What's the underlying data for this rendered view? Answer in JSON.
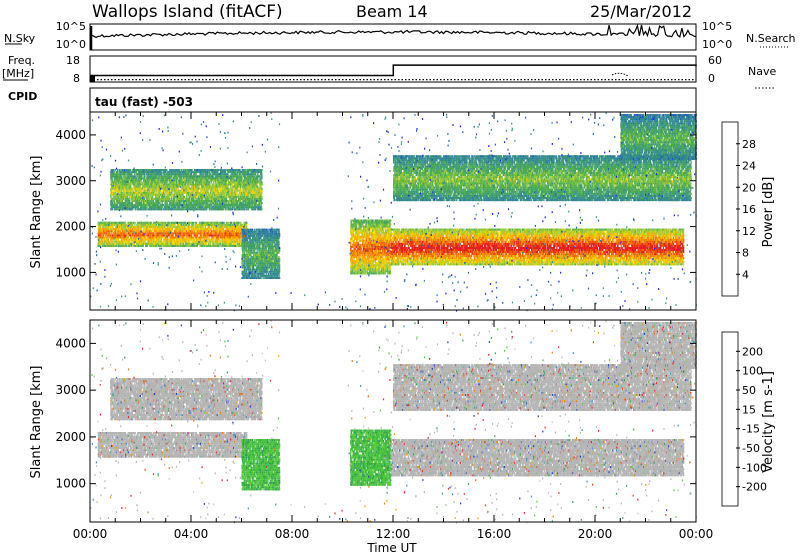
{
  "header": {
    "station": "Wallops Island (fitACF)",
    "beam": "Beam 14",
    "date": "25/Mar/2012"
  },
  "labels": {
    "nsky": "N.Sky",
    "nsearch": "N.Search",
    "freq": "Freq.",
    "freq_unit": "[MHz]",
    "nave": "Nave",
    "cpid": "CPID",
    "cpid_value": "tau (fast) -503"
  },
  "colors": {
    "power_scale": [
      "#1e1ee6",
      "#1e5ab4",
      "#2e7fa0",
      "#3c9a78",
      "#50b04a",
      "#96c83c",
      "#f0d200",
      "#f5a000",
      "#f06400",
      "#e61e1e"
    ],
    "velocity_scale": [
      "#1e3cc8",
      "#3c8cc8",
      "#2ea050",
      "#50c83c",
      "#c8c8c8",
      "#c8c8c8",
      "#f0a000",
      "#f07800",
      "#e63c1e",
      "#e61e1e"
    ],
    "ground_scatter": "#b4b4b4"
  },
  "chart_data": [
    {
      "type": "line",
      "name": "noise-panel",
      "y_ticks_left": [
        "10^5",
        "10^0"
      ],
      "y_ticks_right": [
        "10^5",
        "10^0"
      ],
      "x_range_hours": [
        0,
        24
      ]
    },
    {
      "type": "line",
      "name": "frequency-nave-panel",
      "y_ticks_left": [
        "18",
        "8"
      ],
      "y_ticks_right": [
        "60",
        "0"
      ],
      "series": [
        {
          "name": "Freq.",
          "x": [
            0,
            0.05,
            0.3,
            12,
            12.01,
            24
          ],
          "y": [
            8.8,
            10.5,
            10.5,
            10.5,
            14.5,
            14.0
          ]
        },
        {
          "name": "Nave",
          "x": [
            0,
            24
          ],
          "y": [
            5,
            5
          ]
        }
      ]
    },
    {
      "type": "heatmap",
      "name": "power",
      "ylabel": "Slant Range [km]",
      "colorbar_label": "Power [dB]",
      "y_ticks": [
        1000,
        2000,
        3000,
        4000
      ],
      "colorbar_ticks": [
        4,
        8,
        12,
        16,
        20,
        24,
        28
      ],
      "ylim": [
        180,
        4500
      ],
      "x_range_hours": [
        0,
        24
      ],
      "scatter_regions": [
        {
          "t0": 0.3,
          "t1": 6.2,
          "r0": 1600,
          "r1": 2150,
          "peak_db": 26
        },
        {
          "t0": 0.8,
          "t1": 6.8,
          "r0": 2400,
          "r1": 3300,
          "peak_db": 18
        },
        {
          "t0": 6.0,
          "t1": 7.5,
          "r0": 900,
          "r1": 2000,
          "peak_db": 14
        },
        {
          "t0": 10.3,
          "t1": 11.9,
          "r0": 1000,
          "r1": 2200,
          "peak_db": 26
        },
        {
          "t0": 11.9,
          "t1": 23.5,
          "r0": 1200,
          "r1": 2000,
          "peak_db": 30
        },
        {
          "t0": 12.0,
          "t1": 23.8,
          "r0": 2600,
          "r1": 3600,
          "peak_db": 16
        },
        {
          "t0": 21.0,
          "t1": 24.0,
          "r0": 3500,
          "r1": 4500,
          "peak_db": 14
        }
      ]
    },
    {
      "type": "heatmap",
      "name": "velocity",
      "ylabel": "Slant Range [km]",
      "colorbar_label": "Velocity [m s-1]",
      "y_ticks": [
        1000,
        2000,
        3000,
        4000
      ],
      "colorbar_ticks": [
        -200,
        -100,
        -50,
        -15,
        15,
        50,
        100,
        200
      ],
      "ylim": [
        180,
        4500
      ],
      "x_range_hours": [
        0,
        24
      ],
      "xlabel": "Time UT",
      "x_ticks": [
        "00:00",
        "04:00",
        "08:00",
        "12:00",
        "16:00",
        "20:00",
        "00:00"
      ]
    }
  ]
}
